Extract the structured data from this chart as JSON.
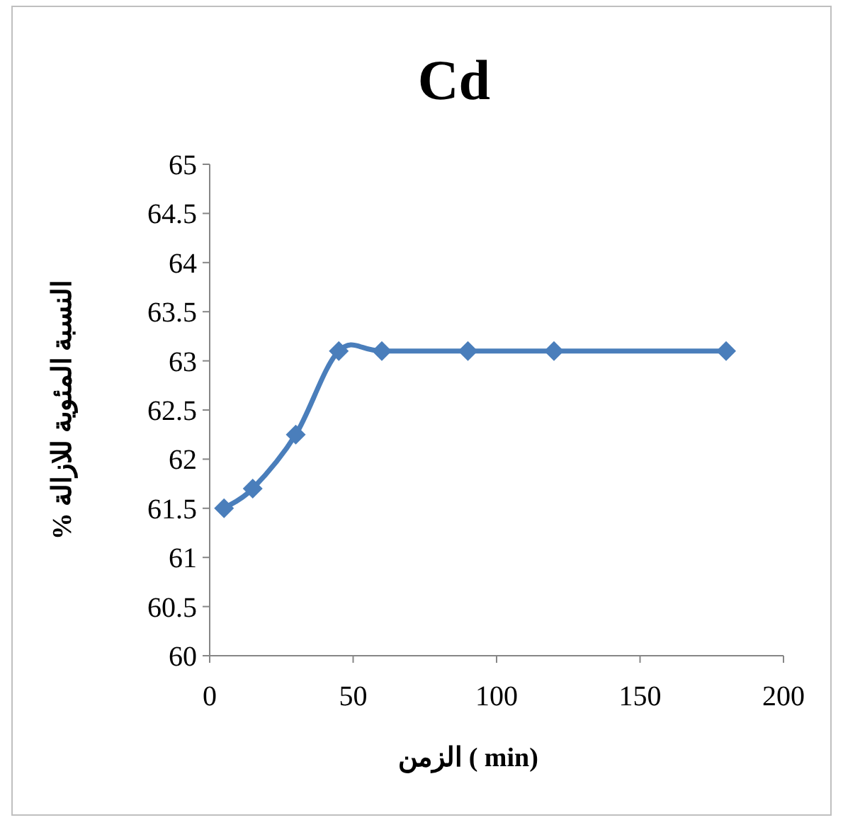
{
  "chart_data": {
    "type": "line",
    "title": "Cd",
    "xlabel": "الزمن ( min)",
    "ylabel": "النسبة المئوية للازالة %",
    "x": [
      5,
      15,
      30,
      45,
      60,
      90,
      120,
      180
    ],
    "series": [
      {
        "color": "#4a7ebb",
        "values": [
          61.5,
          61.7,
          62.25,
          63.1,
          63.1,
          63.1,
          63.1,
          63.1
        ]
      }
    ],
    "xlim": [
      0,
      200
    ],
    "xticks": [
      0,
      50,
      100,
      150,
      200
    ],
    "ylim": [
      60,
      65
    ],
    "yticks": [
      60,
      60.5,
      61,
      61.5,
      62,
      62.5,
      63,
      63.5,
      64,
      64.5,
      65
    ],
    "marker": "diamond",
    "line_style": "solid",
    "grid": false
  }
}
